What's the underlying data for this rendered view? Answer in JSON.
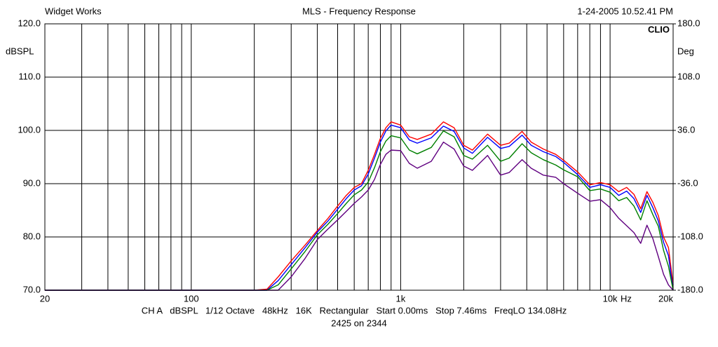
{
  "chart_data": {
    "type": "line",
    "title": "MLS - Frequency Response",
    "header_left": "Widget Works",
    "header_right": "1-24-2005 10.52.41 PM",
    "brand": "CLIO",
    "y_label": "dBSPL",
    "y2_label": "Deg",
    "x_unit": "Hz",
    "footer": "CH A   dBSPL   1/12 Octave   48kHz   16K   Rectangular   Start 0.00ms   Stop 7.46ms   FreqLO 134.08Hz",
    "footer2": "2425 on 2344",
    "log_x": true,
    "grid": true,
    "xlim": [
      20,
      20000
    ],
    "ylim": [
      70,
      120
    ],
    "y2lim": [
      -180,
      180
    ],
    "xticks": [
      20,
      100,
      {
        "value": 1000,
        "label": "1k"
      },
      {
        "value": 10000,
        "label": "10k"
      },
      {
        "value": 20000,
        "label": "20k"
      }
    ],
    "xminor": [
      30,
      40,
      50,
      60,
      70,
      80,
      90,
      200,
      300,
      400,
      500,
      600,
      700,
      800,
      900,
      2000,
      3000,
      4000,
      5000,
      6000,
      7000,
      8000,
      9000
    ],
    "yticks": [
      {
        "value": 70,
        "label": "70.0"
      },
      {
        "value": 80,
        "label": "80.0"
      },
      {
        "value": 90,
        "label": "90.0"
      },
      {
        "value": 100,
        "label": "100.0"
      },
      {
        "value": 110,
        "label": "110.0"
      },
      {
        "value": 120,
        "label": "120.0"
      }
    ],
    "y2ticks": [
      {
        "value": -180,
        "label": "-180.0"
      },
      {
        "value": -108,
        "label": "-108.0"
      },
      {
        "value": -36,
        "label": "-36.0"
      },
      {
        "value": 36,
        "label": "36.0"
      },
      {
        "value": 108,
        "label": "108.0"
      },
      {
        "value": 180,
        "label": "180.0"
      }
    ],
    "x": [
      20,
      150,
      200,
      230,
      260,
      300,
      350,
      400,
      450,
      500,
      550,
      600,
      650,
      700,
      750,
      800,
      850,
      900,
      1000,
      1100,
      1200,
      1400,
      1600,
      1800,
      2000,
      2200,
      2600,
      3000,
      3300,
      3800,
      4200,
      4800,
      5500,
      6000,
      7000,
      8000,
      9000,
      10000,
      11000,
      12000,
      13000,
      14000,
      15000,
      16000,
      17000,
      18000,
      19000,
      20000
    ],
    "series": [
      {
        "color": "#ff0000",
        "values": [
          70,
          70,
          70,
          70.2,
          72.5,
          75.5,
          78.5,
          81.2,
          83.5,
          85.8,
          87.8,
          89.3,
          90,
          92.5,
          95.5,
          98.5,
          100.5,
          101.6,
          101,
          98.8,
          98.3,
          99.3,
          101.6,
          100.5,
          97.2,
          96.3,
          99.3,
          97.2,
          97.6,
          99.8,
          97.8,
          96.5,
          95.5,
          94.4,
          92.2,
          89.8,
          90.2,
          89.8,
          88.5,
          89.3,
          88,
          85.3,
          88.5,
          86.5,
          84,
          80,
          78,
          71
        ]
      },
      {
        "color": "#0000ff",
        "values": [
          70,
          70,
          70,
          70,
          71.8,
          74.8,
          78,
          80.9,
          83,
          85.2,
          87.2,
          88.8,
          89.6,
          91.8,
          94.8,
          97.8,
          99.9,
          101,
          100.5,
          98.2,
          97.6,
          98.6,
          100.8,
          99.8,
          96.7,
          95.7,
          98.7,
          96.6,
          97,
          99.1,
          97.2,
          96,
          95.1,
          94,
          91.7,
          89.3,
          89.8,
          89.3,
          87.8,
          88.6,
          87.2,
          84.6,
          87.8,
          85.5,
          83,
          79,
          76.5,
          70
        ]
      },
      {
        "color": "#008000",
        "values": [
          70,
          70,
          70,
          70,
          71,
          74,
          77.3,
          80.4,
          82.4,
          84.4,
          86.3,
          87.9,
          88.8,
          90.3,
          93,
          96,
          98,
          99,
          98.6,
          96.3,
          95.6,
          96.8,
          99.9,
          98.8,
          95.3,
          94.6,
          97.2,
          94.2,
          94.8,
          97.5,
          95.8,
          94.5,
          93.5,
          92.6,
          91.3,
          88.7,
          89,
          88.4,
          86.8,
          87.4,
          85.8,
          83.2,
          86.8,
          84.2,
          82,
          77.5,
          74.5,
          70
        ]
      },
      {
        "color": "#600080",
        "values": [
          70,
          70,
          70,
          70,
          70,
          72.5,
          76,
          79.5,
          81.5,
          83.2,
          84.8,
          86.3,
          87.5,
          88.8,
          90.8,
          93.6,
          95.5,
          96.3,
          96.2,
          93.8,
          92.9,
          94.2,
          97.8,
          96.5,
          93.3,
          92.5,
          95.3,
          91.6,
          92.1,
          94.5,
          92.9,
          91.6,
          91.2,
          90,
          88.2,
          86.7,
          87,
          85.5,
          83.5,
          82.1,
          80.8,
          78.8,
          82.2,
          79.7,
          76.3,
          73,
          71,
          70
        ]
      }
    ]
  }
}
